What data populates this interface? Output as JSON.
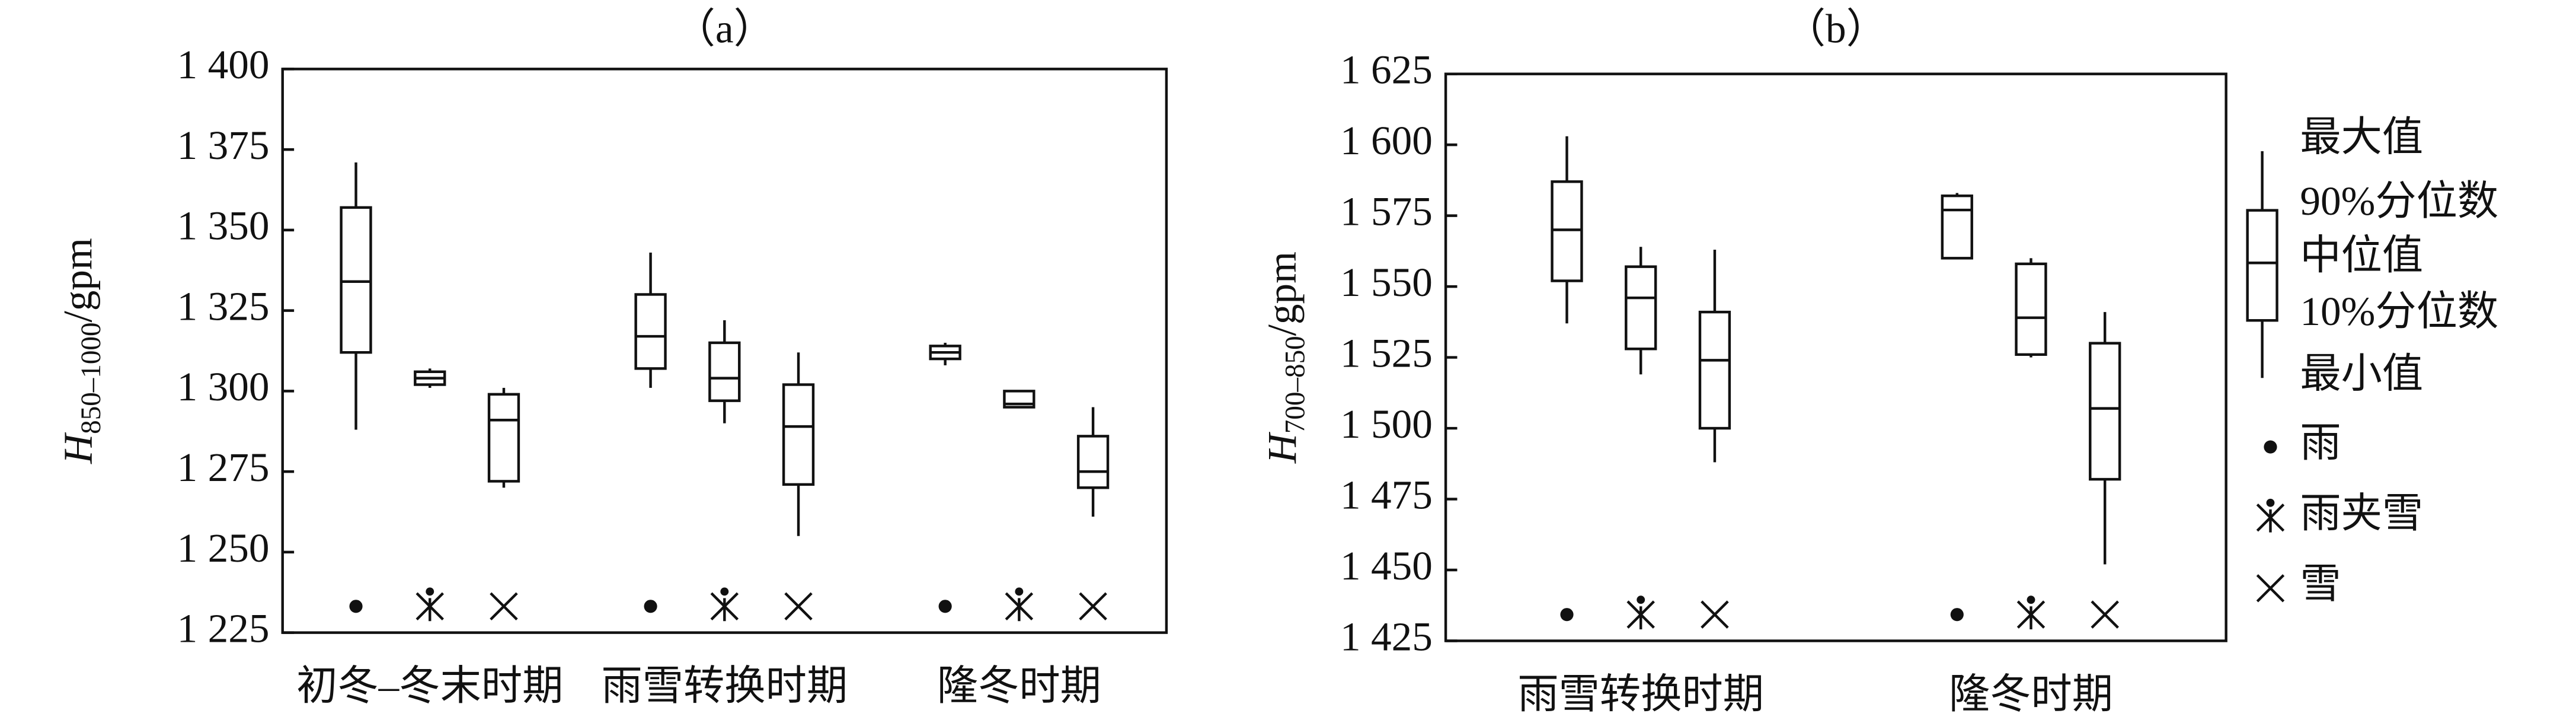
{
  "chart_data": [
    {
      "type": "box",
      "title": "（a）",
      "ylabel": {
        "symbol": "H",
        "subscript": "850–1000",
        "unit": "/gpm"
      },
      "categories": [
        "初冬–冬末时期",
        "雨雪转换时期",
        "隆冬时期"
      ],
      "ylim": [
        1225,
        1400
      ],
      "yticks": [
        {
          "value": 1225,
          "label": "1 225"
        },
        {
          "value": 1250,
          "label": "1 250"
        },
        {
          "value": 1275,
          "label": "1 275"
        },
        {
          "value": 1300,
          "label": "1 300"
        },
        {
          "value": 1325,
          "label": "1 325"
        },
        {
          "value": 1350,
          "label": "1 350"
        },
        {
          "value": 1375,
          "label": "1 375"
        },
        {
          "value": 1400,
          "label": "1 400"
        }
      ],
      "series": [
        {
          "name": "雨",
          "marker": "dot",
          "max": [
            1371,
            1343,
            1315
          ],
          "q90": [
            1357,
            1330,
            1314
          ],
          "median": [
            1334,
            1317,
            1312
          ],
          "q10": [
            1312,
            1307,
            1310
          ],
          "min": [
            1288,
            1301,
            1308
          ]
        },
        {
          "name": "雨夹雪",
          "marker": "sleet",
          "max": [
            1307,
            1322,
            1300
          ],
          "q90": [
            1306,
            1315,
            1300
          ],
          "median": [
            1304,
            1304,
            1296
          ],
          "q10": [
            1302,
            1297,
            1295
          ],
          "min": [
            1301,
            1290,
            1295
          ]
        },
        {
          "name": "雪",
          "marker": "cross",
          "max": [
            1301,
            1312,
            1295
          ],
          "q90": [
            1299,
            1302,
            1286
          ],
          "median": [
            1291,
            1289,
            1275
          ],
          "q10": [
            1272,
            1271,
            1270
          ],
          "min": [
            1270,
            1255,
            1261
          ]
        }
      ]
    },
    {
      "type": "box",
      "title": "（b）",
      "ylabel": {
        "symbol": "H",
        "subscript": "700–850",
        "unit": "/gpm"
      },
      "categories": [
        "雨雪转换时期",
        "隆冬时期"
      ],
      "ylim": [
        1425,
        1625
      ],
      "yticks": [
        {
          "value": 1425,
          "label": "1 425"
        },
        {
          "value": 1450,
          "label": "1 450"
        },
        {
          "value": 1475,
          "label": "1 475"
        },
        {
          "value": 1500,
          "label": "1 500"
        },
        {
          "value": 1525,
          "label": "1 525"
        },
        {
          "value": 1550,
          "label": "1 550"
        },
        {
          "value": 1575,
          "label": "1 575"
        },
        {
          "value": 1600,
          "label": "1 600"
        },
        {
          "value": 1625,
          "label": "1 625"
        }
      ],
      "series": [
        {
          "name": "雨",
          "marker": "dot",
          "max": [
            1603,
            1583
          ],
          "q90": [
            1587,
            1582
          ],
          "median": [
            1570,
            1577
          ],
          "q10": [
            1552,
            1560
          ],
          "min": [
            1537,
            1560
          ]
        },
        {
          "name": "雨夹雪",
          "marker": "sleet",
          "max": [
            1564,
            1560
          ],
          "q90": [
            1557,
            1558
          ],
          "median": [
            1546,
            1539
          ],
          "q10": [
            1528,
            1526
          ],
          "min": [
            1519,
            1525
          ]
        },
        {
          "name": "雪",
          "marker": "cross",
          "max": [
            1563,
            1541
          ],
          "q90": [
            1541,
            1530
          ],
          "median": [
            1524,
            1507
          ],
          "q10": [
            1500,
            1482
          ],
          "min": [
            1488,
            1452
          ]
        }
      ],
      "legend": "right",
      "box_legend": [
        "最大值",
        "90%分位数",
        "中位值",
        "10%分位数",
        "最小值"
      ]
    }
  ]
}
